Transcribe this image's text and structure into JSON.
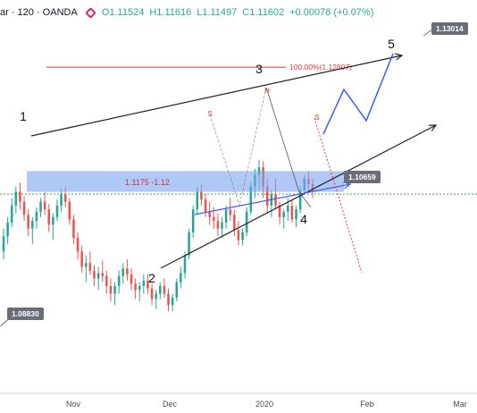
{
  "header": {
    "symbol": "ar · 120 · OANDA",
    "open": "O1.11524",
    "high": "H1.11616",
    "low": "L1.11497",
    "close": "C1.11602",
    "change": "+0.00078 (+0.07%)"
  },
  "colors": {
    "up": "#26a69a",
    "down": "#ef5350",
    "zone": "#7aa3f0",
    "trend": "#222222",
    "projection": "#3d5afe",
    "fib": "#e53935",
    "dotted": "#43a047",
    "badge": "#6a6d78"
  },
  "chart_data": {
    "type": "candlestick",
    "title": "",
    "xlabel": "",
    "ylabel": "",
    "x_ticks": [
      "Nov",
      "Dec",
      "2020",
      "Feb",
      "Mar"
    ],
    "ylim": [
      1.0855,
      1.1345
    ],
    "price_labels": [
      "1.13014",
      "1.10659",
      "1.08830"
    ],
    "price_label_values": [
      1.13014,
      1.10659,
      1.0883
    ],
    "dotted_level": 1.1115,
    "zone": {
      "label": "1.1175 -1.12",
      "low": 1.1118,
      "high": 1.1145
    },
    "fib_label": "100.00%(1.12807)",
    "fib_value": 1.12807,
    "wave_labels": [
      "1",
      "2",
      "3",
      "4",
      "5"
    ],
    "pattern_labels": [
      "S",
      "H",
      "S"
    ],
    "series": [
      {
        "values": [
          [
            1.104,
            1.107,
            1.103,
            1.106
          ],
          [
            1.106,
            1.1085,
            1.105,
            1.1078
          ],
          [
            1.1078,
            1.111,
            1.1072,
            1.11
          ],
          [
            1.11,
            1.1125,
            1.109,
            1.1118
          ],
          [
            1.1118,
            1.113,
            1.1095,
            1.1105
          ],
          [
            1.1105,
            1.1112,
            1.108,
            1.1088
          ],
          [
            1.1088,
            1.1095,
            1.106,
            1.107
          ],
          [
            1.107,
            1.1085,
            1.105,
            1.108
          ],
          [
            1.108,
            1.1098,
            1.107,
            1.1092
          ],
          [
            1.1092,
            1.111,
            1.1085,
            1.1105
          ],
          [
            1.1105,
            1.1118,
            1.1088,
            1.1095
          ],
          [
            1.1095,
            1.1102,
            1.1065,
            1.1075
          ],
          [
            1.1075,
            1.109,
            1.1055,
            1.1085
          ],
          [
            1.1085,
            1.1108,
            1.108,
            1.11
          ],
          [
            1.11,
            1.1122,
            1.1092,
            1.1115
          ],
          [
            1.1115,
            1.1125,
            1.1098,
            1.1105
          ],
          [
            1.1105,
            1.111,
            1.1075,
            1.1082
          ],
          [
            1.1082,
            1.1088,
            1.105,
            1.1058
          ],
          [
            1.1058,
            1.1065,
            1.103,
            1.104
          ],
          [
            1.104,
            1.1048,
            1.1012,
            1.102
          ],
          [
            1.102,
            1.1035,
            1.1,
            1.1025
          ],
          [
            1.1025,
            1.104,
            1.101,
            1.1015
          ],
          [
            1.1015,
            1.1022,
            1.0995,
            1.1005
          ],
          [
            1.1005,
            1.102,
            1.099,
            1.1012
          ],
          [
            1.1012,
            1.1028,
            1.1,
            1.1008
          ],
          [
            1.1008,
            1.1015,
            1.0985,
            1.0995
          ],
          [
            1.0995,
            1.1005,
            1.0975,
            1.0985
          ],
          [
            1.0985,
            1.1,
            1.097,
            1.0995
          ],
          [
            1.0995,
            1.1015,
            1.0985,
            1.1008
          ],
          [
            1.1008,
            1.1025,
            1.0998,
            1.1018
          ],
          [
            1.1018,
            1.103,
            1.1002,
            1.101
          ],
          [
            1.101,
            1.1018,
            1.099,
            1.0998
          ],
          [
            1.0998,
            1.1005,
            1.0978,
            1.099
          ],
          [
            1.099,
            1.1,
            1.0975,
            1.0995
          ],
          [
            1.0995,
            1.101,
            1.0985,
            1.1002
          ],
          [
            1.1002,
            1.101,
            1.0985,
            1.0992
          ],
          [
            1.0992,
            1.0998,
            1.097,
            1.0978
          ],
          [
            1.0978,
            1.099,
            1.0965,
            1.0985
          ],
          [
            1.0985,
            1.1,
            1.0978,
            1.0995
          ],
          [
            1.0995,
            1.1005,
            1.098,
            1.0985
          ],
          [
            1.0985,
            1.0992,
            1.0962,
            1.097
          ],
          [
            1.097,
            1.0985,
            1.0962,
            1.098
          ],
          [
            1.098,
            1.1005,
            1.0975,
            1.1
          ],
          [
            1.1,
            1.102,
            1.0992,
            1.1012
          ],
          [
            1.1012,
            1.104,
            1.1005,
            1.1035
          ],
          [
            1.1035,
            1.107,
            1.103,
            1.1065
          ],
          [
            1.1065,
            1.11,
            1.1058,
            1.1095
          ],
          [
            1.1095,
            1.1125,
            1.1088,
            1.1118
          ],
          [
            1.1118,
            1.1128,
            1.11,
            1.1108
          ],
          [
            1.1108,
            1.1115,
            1.1085,
            1.1092
          ],
          [
            1.1092,
            1.1105,
            1.1075,
            1.1085
          ],
          [
            1.1085,
            1.1098,
            1.107,
            1.108
          ],
          [
            1.108,
            1.109,
            1.106,
            1.107
          ],
          [
            1.107,
            1.1085,
            1.1058,
            1.1078
          ],
          [
            1.1078,
            1.11,
            1.107,
            1.1095
          ],
          [
            1.1095,
            1.111,
            1.108,
            1.1088
          ],
          [
            1.1088,
            1.1095,
            1.106,
            1.1068
          ],
          [
            1.1068,
            1.108,
            1.1048,
            1.1055
          ],
          [
            1.1055,
            1.107,
            1.1048,
            1.1065
          ],
          [
            1.1065,
            1.1098,
            1.106,
            1.1092
          ],
          [
            1.1092,
            1.113,
            1.1088,
            1.1125
          ],
          [
            1.1125,
            1.1148,
            1.111,
            1.114
          ],
          [
            1.114,
            1.116,
            1.112,
            1.115
          ],
          [
            1.115,
            1.1158,
            1.111,
            1.1125
          ],
          [
            1.1125,
            1.1135,
            1.109,
            1.11
          ],
          [
            1.11,
            1.112,
            1.1085,
            1.1115
          ],
          [
            1.1115,
            1.1135,
            1.1095,
            1.11
          ],
          [
            1.11,
            1.1105,
            1.1075,
            1.1085
          ],
          [
            1.1085,
            1.1095,
            1.107,
            1.1092
          ],
          [
            1.1092,
            1.111,
            1.108,
            1.11
          ],
          [
            1.11,
            1.1108,
            1.1078,
            1.1082
          ],
          [
            1.1082,
            1.11,
            1.1072,
            1.1095
          ],
          [
            1.1095,
            1.1125,
            1.109,
            1.112
          ],
          [
            1.112,
            1.114,
            1.1115,
            1.1135
          ],
          [
            1.1135,
            1.1145,
            1.112,
            1.1128
          ],
          [
            1.1128,
            1.1135,
            1.111,
            1.1118
          ]
        ]
      }
    ]
  }
}
